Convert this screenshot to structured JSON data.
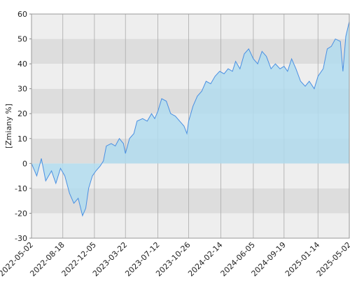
{
  "chart_data": {
    "type": "area",
    "y_label": "[Zmiany %]",
    "x": [
      "2022-05-02",
      "2022-05-20",
      "2022-06-05",
      "2022-06-20",
      "2022-07-10",
      "2022-07-25",
      "2022-08-10",
      "2022-08-25",
      "2022-09-10",
      "2022-09-25",
      "2022-10-10",
      "2022-10-25",
      "2022-11-05",
      "2022-11-15",
      "2022-11-28",
      "2022-12-10",
      "2022-12-25",
      "2023-01-05",
      "2023-01-15",
      "2023-02-01",
      "2023-02-15",
      "2023-03-01",
      "2023-03-15",
      "2023-03-22",
      "2023-04-05",
      "2023-04-20",
      "2023-05-01",
      "2023-05-20",
      "2023-06-05",
      "2023-06-20",
      "2023-07-01",
      "2023-07-12",
      "2023-07-25",
      "2023-08-10",
      "2023-08-25",
      "2023-09-10",
      "2023-09-25",
      "2023-10-10",
      "2023-10-20",
      "2023-10-26",
      "2023-11-10",
      "2023-11-25",
      "2023-12-10",
      "2023-12-25",
      "2024-01-10",
      "2024-01-25",
      "2024-02-10",
      "2024-02-25",
      "2024-03-10",
      "2024-03-25",
      "2024-04-05",
      "2024-04-20",
      "2024-05-05",
      "2024-05-20",
      "2024-06-05",
      "2024-06-20",
      "2024-07-05",
      "2024-07-20",
      "2024-08-05",
      "2024-08-20",
      "2024-09-05",
      "2024-09-19",
      "2024-10-01",
      "2024-10-15",
      "2024-10-30",
      "2024-11-15",
      "2024-12-01",
      "2024-12-15",
      "2025-01-01",
      "2025-01-14",
      "2025-02-01",
      "2025-02-15",
      "2025-03-01",
      "2025-03-15",
      "2025-04-01",
      "2025-04-10",
      "2025-04-20",
      "2025-05-02"
    ],
    "series": [
      {
        "color": "#4a90e2",
        "fill": "#b2dcee",
        "values": [
          0,
          -5,
          2,
          -7,
          -3,
          -8,
          -2,
          -5,
          -12,
          -16,
          -14,
          -21,
          -18,
          -10,
          -5,
          -3,
          -1,
          1,
          7,
          8,
          7,
          10,
          8,
          4,
          10,
          12,
          17,
          18,
          17,
          20,
          18,
          21,
          26,
          25,
          20,
          19,
          17,
          15,
          12,
          17,
          23,
          27,
          29,
          33,
          32,
          35,
          37,
          36,
          38,
          37,
          41,
          38,
          44,
          46,
          42,
          40,
          45,
          43,
          38,
          40,
          38,
          39,
          37,
          42,
          38,
          33,
          31,
          33,
          30,
          35,
          38,
          46,
          47,
          50,
          49,
          37,
          51,
          57
        ]
      }
    ],
    "xlim": [
      "2022-05-02",
      "2025-05-02"
    ],
    "xticks": [
      "2022-05-02",
      "2022-08-18",
      "2022-12-05",
      "2023-03-22",
      "2023-07-12",
      "2023-10-26",
      "2024-02-14",
      "2024-06-05",
      "2024-09-19",
      "2025-01-14",
      "2025-05-02"
    ],
    "ylim": [
      -30,
      60
    ],
    "yticks": [
      -30,
      -20,
      -10,
      0,
      10,
      20,
      30,
      40,
      50,
      60
    ],
    "grid": true,
    "band_colors": [
      "#eeeeee",
      "#dddddd"
    ]
  }
}
